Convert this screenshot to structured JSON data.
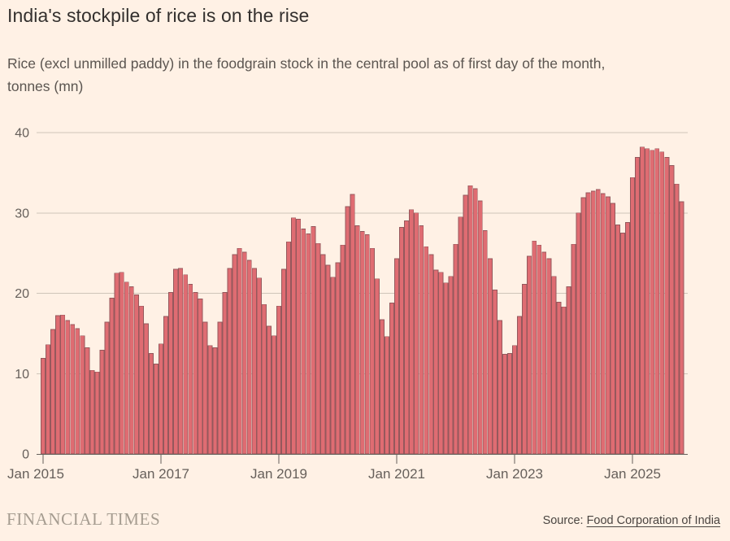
{
  "header": {
    "title": "India's stockpile of rice is on the rise",
    "subtitle_line1": "Rice (excl unmilled paddy) in the foodgrain stock in the central pool as of first day of the month,",
    "subtitle_line2": "tonnes (mn)"
  },
  "chart_data": {
    "type": "bar",
    "title": "India's stockpile of rice is on the rise",
    "xlabel": "",
    "ylabel": "tonnes (mn)",
    "frequency": "monthly",
    "start_month": 1,
    "start_year": 2015,
    "ylim": [
      0,
      40
    ],
    "yticks": [
      0,
      10,
      20,
      30,
      40
    ],
    "grid": "horizontal",
    "legend": "none",
    "x_tick_every_months": 24,
    "x_tick_labels": [
      "Jan 2015",
      "Jan 2017",
      "Jan 2019",
      "Jan 2021",
      "Jan 2023",
      "Jan 2025"
    ],
    "bar_color": "#df6c72",
    "bar_stroke_color": "#95585c",
    "values": [
      11.9,
      13.6,
      15.5,
      17.2,
      17.3,
      16.6,
      16.1,
      15.6,
      14.7,
      13.2,
      10.4,
      10.2,
      12.9,
      16.4,
      19.4,
      22.5,
      22.6,
      21.4,
      20.8,
      19.8,
      18.4,
      16.2,
      12.5,
      11.2,
      13.7,
      17.1,
      20.1,
      23.0,
      23.1,
      22.3,
      21.1,
      20.1,
      19.3,
      16.4,
      13.5,
      13.2,
      16.4,
      20.1,
      23.1,
      24.8,
      25.6,
      25.1,
      24.1,
      23.1,
      21.9,
      18.6,
      15.9,
      14.7,
      18.4,
      23.0,
      26.4,
      29.4,
      29.2,
      28.0,
      27.4,
      28.3,
      26.2,
      24.8,
      23.5,
      22.0,
      23.8,
      26.0,
      30.8,
      32.3,
      28.4,
      27.7,
      27.3,
      25.6,
      21.8,
      16.7,
      14.6,
      18.8,
      24.3,
      28.2,
      29.0,
      30.4,
      30.0,
      28.4,
      25.8,
      24.8,
      22.9,
      22.6,
      21.3,
      22.1,
      26.1,
      29.5,
      32.2,
      33.4,
      33.0,
      31.5,
      27.8,
      24.3,
      20.4,
      16.6,
      12.4,
      12.5,
      13.5,
      17.1,
      21.1,
      24.6,
      26.5,
      26.0,
      25.1,
      24.3,
      22.1,
      18.9,
      18.3,
      20.8,
      26.1,
      30.0,
      31.9,
      32.5,
      32.7,
      32.9,
      32.4,
      32.0,
      31.2,
      28.5,
      27.5,
      28.8,
      34.4,
      36.9,
      38.2,
      38.0,
      37.8,
      38.0,
      37.6,
      36.9,
      35.9,
      33.6,
      31.4
    ]
  },
  "colors": {
    "background": "#fff1e5",
    "title_text": "#33302e",
    "subtitle_text": "#5b5550",
    "axis_text": "#66605b",
    "gridline": "#cfc5b9",
    "baseline": "#66605b",
    "bar_fill": "#df6c72",
    "bar_stroke": "#95585c",
    "brand_text": "#a59c90",
    "source_text": "#4a4541"
  },
  "footer": {
    "brand": "FINANCIAL TIMES",
    "source_prefix": "Source: ",
    "source_link_text": "Food Corporation of India"
  }
}
